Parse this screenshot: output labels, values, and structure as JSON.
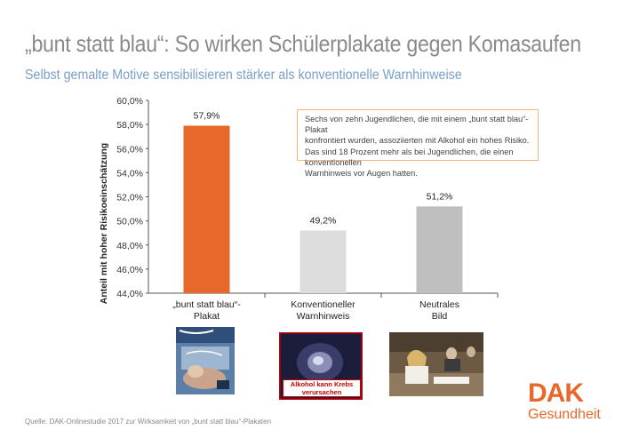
{
  "header": {
    "title": "„bunt statt blau“: So wirken Schülerplakate gegen Komasaufen",
    "subtitle": "Selbst gemalte Motive sensibilisieren stärker als konventionelle Warnhinweise"
  },
  "chart_data": {
    "type": "bar",
    "categories": [
      "„bunt statt blau“-\nPlakat",
      "Konventioneller\nWarnhinweis",
      "Neutrales\nBild"
    ],
    "values": [
      57.9,
      49.2,
      51.2
    ],
    "value_labels": [
      "57,9%",
      "49,2%",
      "51,2%"
    ],
    "bar_colors": [
      "#e8672b",
      "#dcdcdc",
      "#bfbfbf"
    ],
    "ylabel": "Anteil mit hoher Risikoeinschätzung",
    "ylim": [
      44,
      60
    ],
    "yticks": [
      "44,0%",
      "46,0%",
      "48,0%",
      "50,0%",
      "52,0%",
      "54,0%",
      "56,0%",
      "58,0%",
      "60,0%"
    ],
    "grid": false
  },
  "note": {
    "lines": [
      "Sechs von zehn Jugendlichen, die mit einem „bunt statt blau“-Plakat",
      "konfrontiert wurden, assoziierten mit Alkohol ein hohes Risiko.",
      "Das sind 18 Prozent mehr als bei Jugendlichen, die einen konventionellen",
      "Warnhinweis vor Augen hatten."
    ]
  },
  "thumbnails": {
    "warning_caption": "Alkohol kann Krebs verursachen"
  },
  "footer": {
    "source": "Quelle: DAK-Onlinestudie 2017 zur Wirksamkeit von „bunt statt blau“-Plakaten"
  },
  "logo": {
    "brand": "DAK",
    "sub": "Gesundheit"
  },
  "colors": {
    "accent": "#e8672b",
    "subtitle": "#7a9fc8"
  }
}
